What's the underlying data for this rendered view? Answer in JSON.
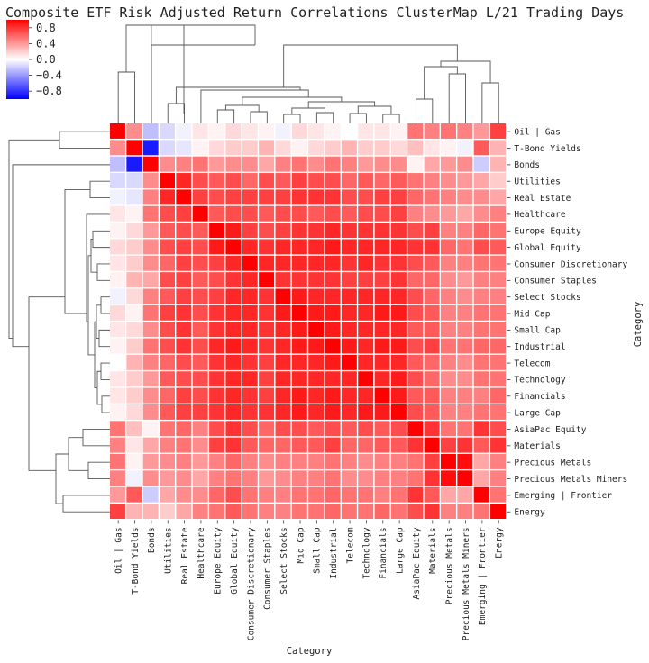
{
  "chart_data": {
    "type": "heatmap",
    "title": "Composite ETF Risk Adjusted Return Correlations ClusterMap L/21 Trading Days",
    "xlabel": "Category",
    "ylabel": "Category",
    "colormap": [
      "#0000ff",
      "#ffffff",
      "#ff0000"
    ],
    "vmin": -1.0,
    "vmax": 1.0,
    "colorbar_ticks": [
      0.8,
      0.4,
      0.0,
      -0.4,
      -0.8
    ],
    "colorbar_tick_labels": [
      "0.8",
      "0.4",
      "0.0",
      "−0.4",
      "−0.8"
    ],
    "categories": [
      "Oil | Gas",
      "T-Bond Yields",
      "Bonds",
      "Utilities",
      "Real Estate",
      "Healthcare",
      "Europe Equity",
      "Global Equity",
      "Consumer Discretionary",
      "Consumer Staples",
      "Select Stocks",
      "Mid Cap",
      "Small Cap",
      "Industrial",
      "Telecom",
      "Technology",
      "Financials",
      "Large Cap",
      "AsiaPac Equity",
      "Materials",
      "Precious Metals",
      "Precious Metals Miners",
      "Emerging | Frontier",
      "Energy"
    ],
    "values": [
      [
        1.0,
        0.45,
        -0.25,
        -0.15,
        -0.05,
        0.1,
        0.05,
        0.15,
        0.1,
        0.05,
        -0.05,
        0.15,
        0.1,
        0.05,
        0.0,
        0.1,
        0.1,
        0.05,
        0.55,
        0.5,
        0.55,
        0.5,
        0.4,
        0.75
      ],
      [
        0.45,
        1.0,
        -0.9,
        -0.15,
        -0.1,
        0.05,
        0.15,
        0.2,
        0.2,
        0.3,
        0.15,
        0.05,
        0.15,
        0.2,
        0.3,
        0.2,
        0.2,
        0.15,
        0.25,
        0.1,
        0.05,
        -0.05,
        0.65,
        0.3
      ],
      [
        -0.25,
        -0.9,
        1.0,
        0.45,
        0.5,
        0.55,
        0.4,
        0.45,
        0.45,
        0.35,
        0.5,
        0.55,
        0.45,
        0.55,
        0.5,
        0.4,
        0.45,
        0.45,
        0.05,
        0.35,
        0.4,
        0.45,
        -0.2,
        0.3
      ],
      [
        -0.15,
        -0.15,
        0.45,
        1.0,
        0.85,
        0.7,
        0.65,
        0.7,
        0.6,
        0.7,
        0.65,
        0.75,
        0.7,
        0.7,
        0.6,
        0.65,
        0.6,
        0.65,
        0.55,
        0.5,
        0.45,
        0.4,
        0.35,
        0.2
      ],
      [
        -0.05,
        -0.1,
        0.5,
        0.85,
        1.0,
        0.75,
        0.7,
        0.75,
        0.75,
        0.75,
        0.75,
        0.8,
        0.8,
        0.8,
        0.7,
        0.7,
        0.75,
        0.75,
        0.6,
        0.55,
        0.5,
        0.45,
        0.45,
        0.35
      ],
      [
        0.1,
        0.05,
        0.55,
        0.7,
        0.75,
        1.0,
        0.65,
        0.7,
        0.7,
        0.65,
        0.7,
        0.7,
        0.65,
        0.7,
        0.65,
        0.7,
        0.7,
        0.75,
        0.5,
        0.45,
        0.4,
        0.35,
        0.45,
        0.5
      ],
      [
        0.05,
        0.15,
        0.4,
        0.65,
        0.7,
        0.65,
        1.0,
        0.9,
        0.75,
        0.7,
        0.75,
        0.8,
        0.8,
        0.85,
        0.8,
        0.8,
        0.8,
        0.8,
        0.7,
        0.75,
        0.5,
        0.5,
        0.6,
        0.55
      ],
      [
        0.15,
        0.2,
        0.45,
        0.7,
        0.75,
        0.7,
        0.9,
        1.0,
        0.85,
        0.8,
        0.85,
        0.85,
        0.85,
        0.9,
        0.85,
        0.85,
        0.85,
        0.85,
        0.8,
        0.8,
        0.6,
        0.55,
        0.7,
        0.65
      ],
      [
        0.1,
        0.2,
        0.45,
        0.6,
        0.75,
        0.7,
        0.75,
        0.85,
        1.0,
        0.85,
        0.85,
        0.85,
        0.85,
        0.85,
        0.8,
        0.85,
        0.8,
        0.8,
        0.7,
        0.65,
        0.5,
        0.5,
        0.55,
        0.55
      ],
      [
        0.05,
        0.3,
        0.35,
        0.7,
        0.75,
        0.65,
        0.7,
        0.8,
        0.85,
        1.0,
        0.8,
        0.8,
        0.8,
        0.8,
        0.75,
        0.75,
        0.75,
        0.8,
        0.6,
        0.6,
        0.45,
        0.4,
        0.5,
        0.5
      ],
      [
        -0.05,
        0.15,
        0.5,
        0.65,
        0.75,
        0.7,
        0.75,
        0.85,
        0.85,
        0.8,
        1.0,
        0.9,
        0.85,
        0.85,
        0.85,
        0.85,
        0.85,
        0.85,
        0.7,
        0.6,
        0.5,
        0.45,
        0.5,
        0.5
      ],
      [
        0.15,
        0.05,
        0.55,
        0.75,
        0.8,
        0.7,
        0.8,
        0.85,
        0.85,
        0.8,
        0.9,
        1.0,
        0.9,
        0.9,
        0.85,
        0.85,
        0.9,
        0.9,
        0.7,
        0.65,
        0.5,
        0.5,
        0.55,
        0.55
      ],
      [
        0.1,
        0.15,
        0.45,
        0.7,
        0.8,
        0.65,
        0.8,
        0.85,
        0.85,
        0.8,
        0.85,
        0.9,
        1.0,
        0.9,
        0.85,
        0.85,
        0.85,
        0.85,
        0.65,
        0.65,
        0.5,
        0.5,
        0.55,
        0.55
      ],
      [
        0.05,
        0.2,
        0.55,
        0.7,
        0.8,
        0.7,
        0.85,
        0.9,
        0.85,
        0.8,
        0.85,
        0.9,
        0.9,
        1.0,
        0.9,
        0.85,
        0.9,
        0.9,
        0.7,
        0.75,
        0.55,
        0.55,
        0.6,
        0.6
      ],
      [
        0.0,
        0.3,
        0.5,
        0.6,
        0.7,
        0.65,
        0.8,
        0.85,
        0.8,
        0.75,
        0.85,
        0.85,
        0.85,
        0.9,
        1.0,
        0.85,
        0.85,
        0.85,
        0.65,
        0.6,
        0.5,
        0.45,
        0.55,
        0.55
      ],
      [
        0.1,
        0.2,
        0.4,
        0.65,
        0.7,
        0.7,
        0.8,
        0.85,
        0.85,
        0.75,
        0.85,
        0.85,
        0.85,
        0.85,
        0.85,
        1.0,
        0.85,
        0.9,
        0.7,
        0.6,
        0.45,
        0.45,
        0.55,
        0.55
      ],
      [
        0.1,
        0.2,
        0.45,
        0.6,
        0.75,
        0.7,
        0.8,
        0.85,
        0.8,
        0.75,
        0.85,
        0.9,
        0.85,
        0.9,
        0.85,
        0.85,
        1.0,
        0.9,
        0.65,
        0.65,
        0.5,
        0.5,
        0.5,
        0.6
      ],
      [
        0.05,
        0.15,
        0.45,
        0.65,
        0.75,
        0.75,
        0.8,
        0.85,
        0.8,
        0.8,
        0.85,
        0.9,
        0.85,
        0.9,
        0.85,
        0.9,
        0.9,
        1.0,
        0.7,
        0.65,
        0.5,
        0.5,
        0.55,
        0.55
      ],
      [
        0.55,
        0.25,
        0.05,
        0.55,
        0.6,
        0.5,
        0.7,
        0.8,
        0.7,
        0.6,
        0.7,
        0.7,
        0.65,
        0.7,
        0.65,
        0.7,
        0.65,
        0.7,
        1.0,
        0.8,
        0.55,
        0.55,
        0.8,
        0.7
      ],
      [
        0.5,
        0.1,
        0.35,
        0.5,
        0.55,
        0.45,
        0.75,
        0.8,
        0.65,
        0.6,
        0.6,
        0.65,
        0.65,
        0.75,
        0.6,
        0.6,
        0.65,
        0.65,
        0.8,
        1.0,
        0.75,
        0.8,
        0.65,
        0.8
      ],
      [
        0.55,
        0.05,
        0.4,
        0.45,
        0.5,
        0.4,
        0.5,
        0.6,
        0.5,
        0.45,
        0.5,
        0.5,
        0.5,
        0.55,
        0.5,
        0.45,
        0.5,
        0.5,
        0.55,
        0.75,
        1.0,
        0.95,
        0.35,
        0.5
      ],
      [
        0.5,
        -0.05,
        0.45,
        0.4,
        0.45,
        0.35,
        0.5,
        0.55,
        0.5,
        0.4,
        0.45,
        0.5,
        0.5,
        0.55,
        0.45,
        0.45,
        0.5,
        0.5,
        0.55,
        0.8,
        0.95,
        1.0,
        0.35,
        0.5
      ],
      [
        0.4,
        0.65,
        -0.2,
        0.35,
        0.45,
        0.45,
        0.6,
        0.7,
        0.55,
        0.5,
        0.5,
        0.55,
        0.55,
        0.6,
        0.55,
        0.55,
        0.5,
        0.55,
        0.8,
        0.65,
        0.35,
        0.35,
        1.0,
        0.55
      ],
      [
        0.75,
        0.3,
        0.3,
        0.2,
        0.35,
        0.5,
        0.55,
        0.65,
        0.55,
        0.5,
        0.5,
        0.55,
        0.55,
        0.6,
        0.55,
        0.55,
        0.6,
        0.55,
        0.7,
        0.8,
        0.5,
        0.5,
        0.55,
        1.0
      ]
    ]
  }
}
